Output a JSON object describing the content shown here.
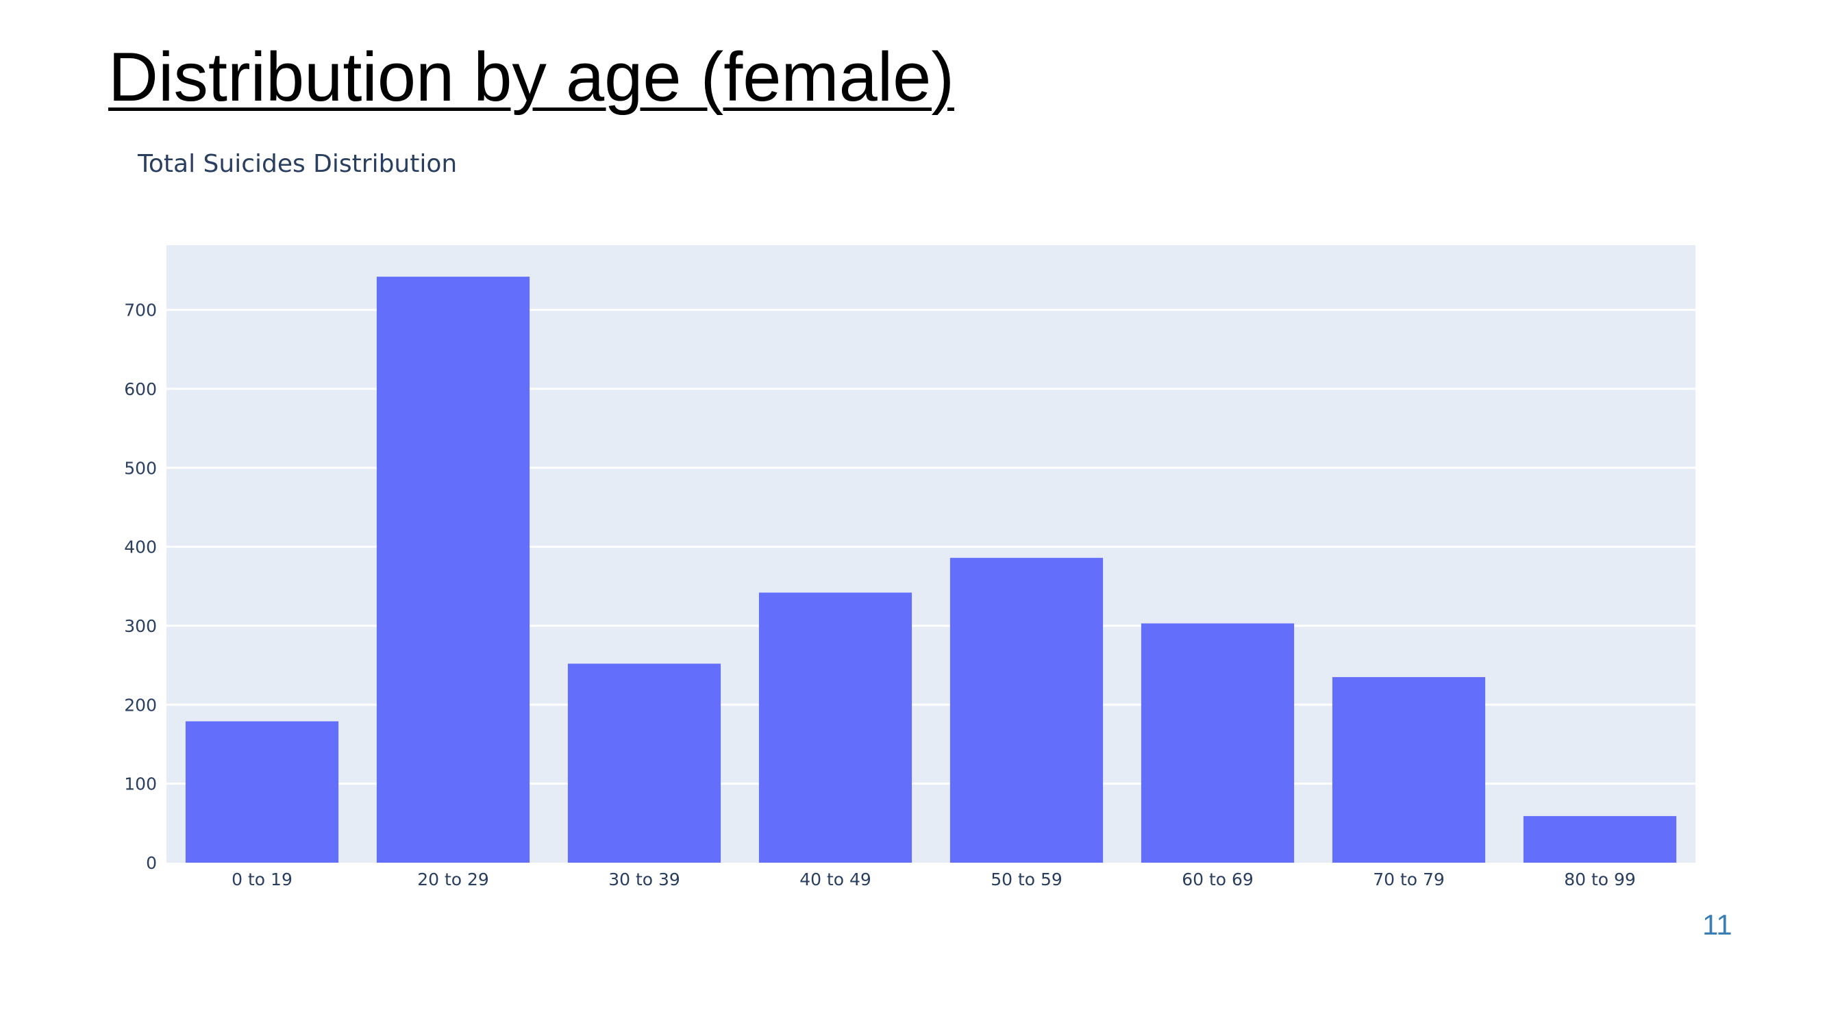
{
  "slide": {
    "title": "Distribution by age (female)",
    "page_number": "11"
  },
  "colors": {
    "bar": "#636efa",
    "plot_bg": "#e5ecf6",
    "grid": "#ffffff",
    "text": "#2a3f5f",
    "page_number": "#3a7fb3"
  },
  "chart_data": {
    "type": "bar",
    "title": "Total Suicides Distribution",
    "xlabel": "",
    "ylabel": "",
    "categories": [
      "0 to 19",
      "20 to 29",
      "30 to 39",
      "40 to 49",
      "50 to 59",
      "60 to 69",
      "70 to 79",
      "80 to 99"
    ],
    "values": [
      179,
      742,
      252,
      342,
      386,
      303,
      235,
      59
    ],
    "ylim": [
      0,
      782
    ],
    "yticks": [
      0,
      100,
      200,
      300,
      400,
      500,
      600,
      700
    ],
    "grid": true,
    "legend": "none"
  }
}
